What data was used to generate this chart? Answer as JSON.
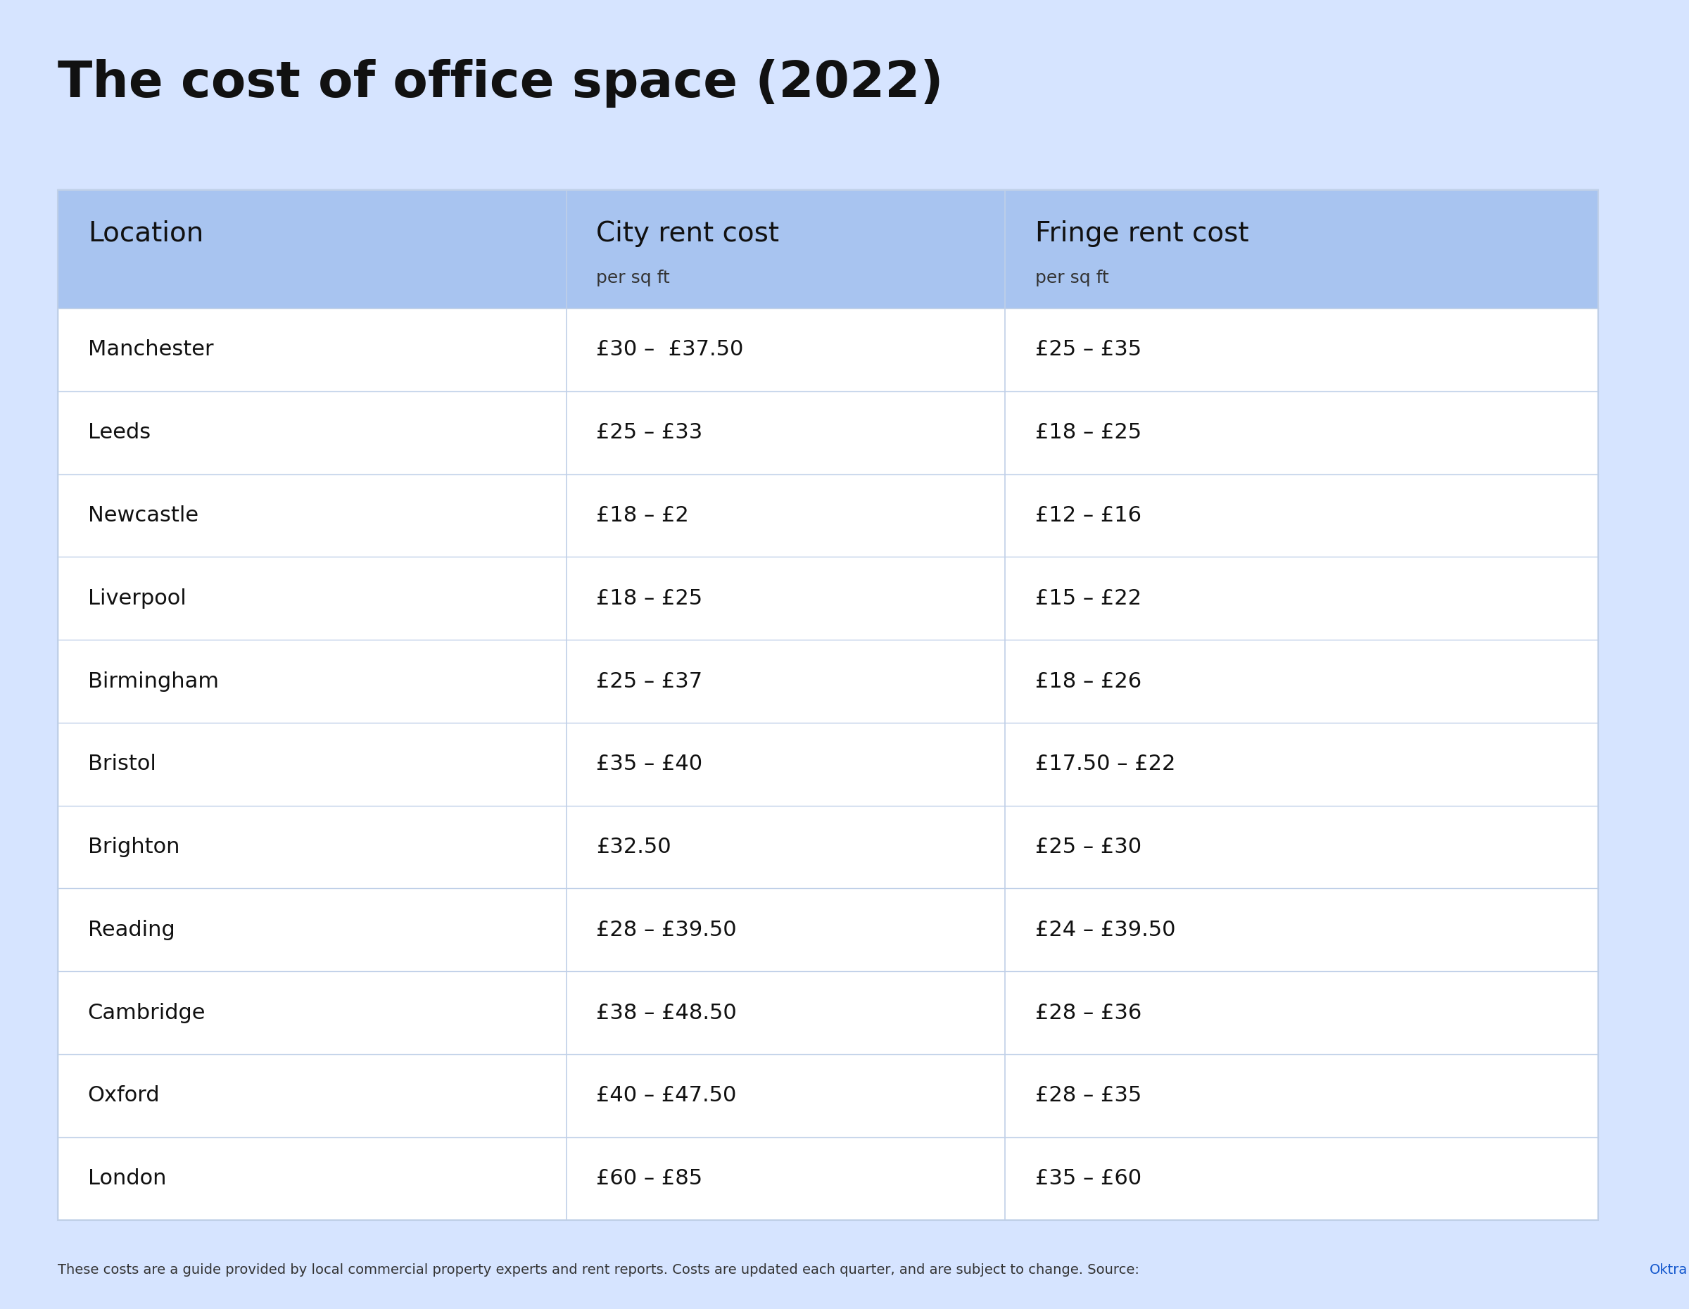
{
  "title": "The cost of office space (2022)",
  "background_color": "#d6e4ff",
  "header_bg_color": "#a8c4f0",
  "row_bg_even": "#ffffff",
  "row_bg_odd": "#ffffff",
  "table_border_color": "#c0d0e8",
  "col_headers": [
    "Location",
    "City rent cost\nper sq ft",
    "Fringe rent cost\nper sq ft"
  ],
  "col_headers_main": [
    "Location",
    "City rent cost",
    "Fringe rent cost"
  ],
  "col_headers_sub": [
    "",
    "per sq ft",
    "per sq ft"
  ],
  "rows": [
    [
      "Manchester",
      "£30 –  £37.50",
      "£25 – £35"
    ],
    [
      "Leeds",
      "£25 – £33",
      "£18 – £25"
    ],
    [
      "Newcastle",
      "£18 – £2",
      "£12 – £16"
    ],
    [
      "Liverpool",
      "£18 – £25",
      "£15 – £22"
    ],
    [
      "Birmingham",
      "£25 – £37",
      "£18 – £26"
    ],
    [
      "Bristol",
      "£35 – £40",
      "£17.50 – £22"
    ],
    [
      "Brighton",
      "£32.50",
      "£25 – £30"
    ],
    [
      "Reading",
      "£28 – £39.50",
      "£24 – £39.50"
    ],
    [
      "Cambridge",
      "£38 – £48.50",
      "£28 – £36"
    ],
    [
      "Oxford",
      "£40 – £47.50",
      "£28 – £35"
    ],
    [
      "London",
      "£60 – £85",
      "£35 – £60"
    ]
  ],
  "footnote": "These costs are a guide provided by local commercial property experts and rent reports. Costs are updated each quarter, and are subject to change. Source: Oktra",
  "footnote_link": "Oktra"
}
